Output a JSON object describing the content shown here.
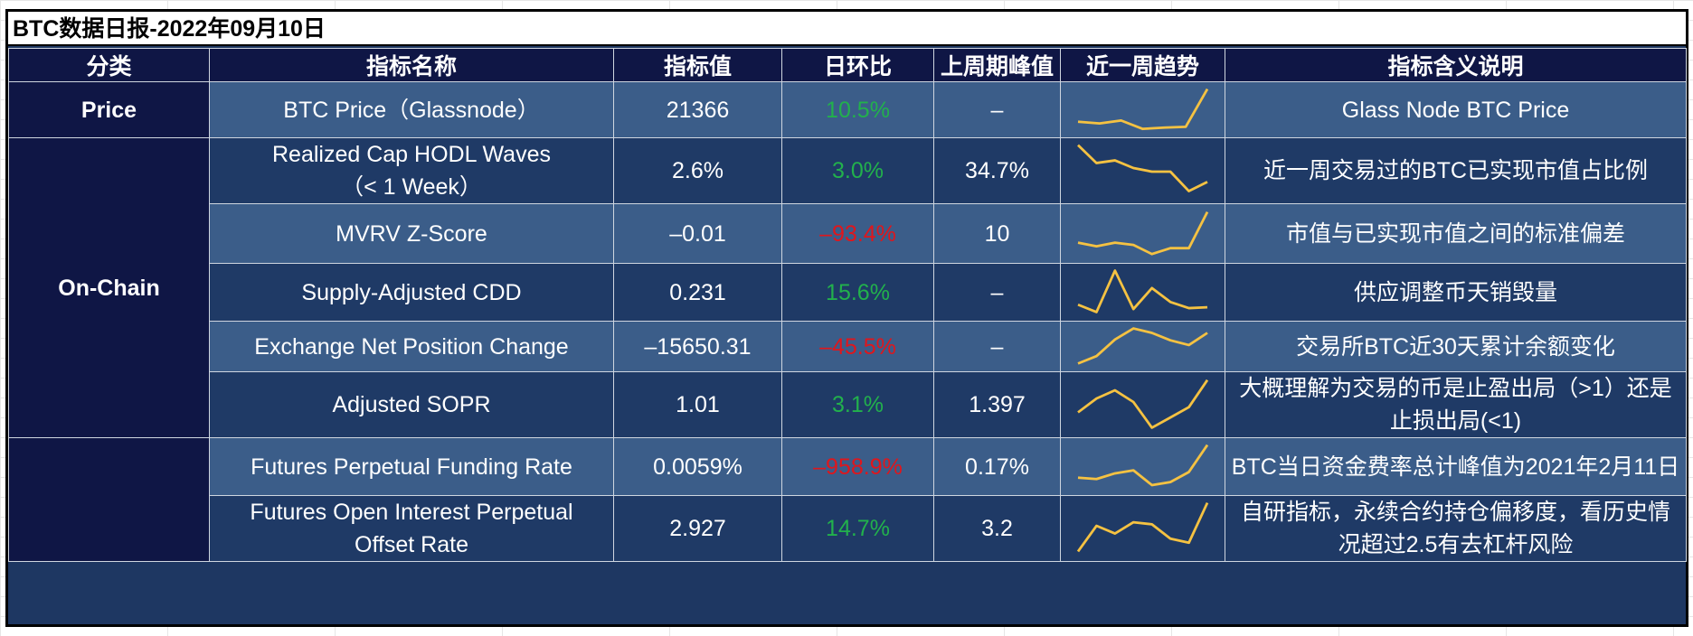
{
  "report": {
    "title": "BTC数据日报-2022年09月10日"
  },
  "columns": [
    "分类",
    "指标名称",
    "指标值",
    "日环比",
    "上周期峰值",
    "近一周趋势",
    "指标含义说明"
  ],
  "categories": {
    "price": "Price",
    "onchain": "On-Chain",
    "derivatives": ""
  },
  "rows": [
    {
      "name": "BTC Price（Glassnode）",
      "value": "21366",
      "change": "10.5%",
      "direction": "up",
      "peak": "–",
      "trend": [
        0.22,
        0.18,
        0.25,
        0.05,
        0.08,
        0.1,
        1.0
      ],
      "desc": "Glass Node BTC Price"
    },
    {
      "name": "Realized Cap HODL Waves\n（< 1 Week）",
      "value": "2.6%",
      "change": "3.0%",
      "direction": "up",
      "peak": "34.7%",
      "trend": [
        1.0,
        0.65,
        0.7,
        0.55,
        0.48,
        0.48,
        0.1,
        0.28
      ],
      "desc": "近一周交易过的BTC已实现市值占比例"
    },
    {
      "name": "MVRV Z-Score",
      "value": "–0.01",
      "change": "–93.4%",
      "direction": "down",
      "peak": "10",
      "trend": [
        0.3,
        0.22,
        0.3,
        0.25,
        0.05,
        0.18,
        0.18,
        0.98
      ],
      "desc": "市值与已实现市值之间的标准偏差"
    },
    {
      "name": "Supply-Adjusted CDD",
      "value": "0.231",
      "change": "15.6%",
      "direction": "up",
      "peak": "–",
      "trend": [
        0.22,
        0.05,
        1.0,
        0.12,
        0.6,
        0.28,
        0.14,
        0.16
      ],
      "desc": "供应调整币天销毁量"
    },
    {
      "name": "Exchange Net Position Change",
      "value": "–15650.31",
      "change": "–45.5%",
      "direction": "down",
      "peak": "–",
      "trend": [
        0.05,
        0.25,
        0.7,
        1.0,
        0.88,
        0.68,
        0.55,
        0.88
      ],
      "desc": "交易所BTC近30天累计余额变化"
    },
    {
      "name": "Adjusted SOPR",
      "value": "1.01",
      "change": "3.1%",
      "direction": "up",
      "peak": "1.397",
      "trend": [
        0.35,
        0.62,
        0.78,
        0.55,
        0.05,
        0.25,
        0.45,
        0.98
      ],
      "desc": "大概理解为交易的币是止盈出局（>1）还是止损出局(<1)"
    },
    {
      "name": "Futures Perpetual Funding Rate",
      "value": "0.0059%",
      "change": "–958.9%",
      "direction": "down",
      "peak": "0.17%",
      "trend": [
        0.25,
        0.22,
        0.35,
        0.42,
        0.08,
        0.15,
        0.38,
        1.0
      ],
      "desc": "BTC当日资金费率总计峰值为2021年2月11日"
    },
    {
      "name": "Futures Open Interest Perpetual\nOffset Rate",
      "value": "2.927",
      "change": "14.7%",
      "direction": "up",
      "peak": "3.2",
      "trend": [
        0.05,
        0.55,
        0.4,
        0.62,
        0.58,
        0.3,
        0.22,
        1.0
      ],
      "desc": "自研指标，永续合约持仓偏移度，看历史情况超过2.5有去杠杆风险"
    }
  ],
  "colors": {
    "up": "#22b14c",
    "down": "#e0161c",
    "trend_line": "#f5c242",
    "header_bg": "#0f1645",
    "row_light": "#3b5d89",
    "row_dark": "#1f3a66"
  }
}
